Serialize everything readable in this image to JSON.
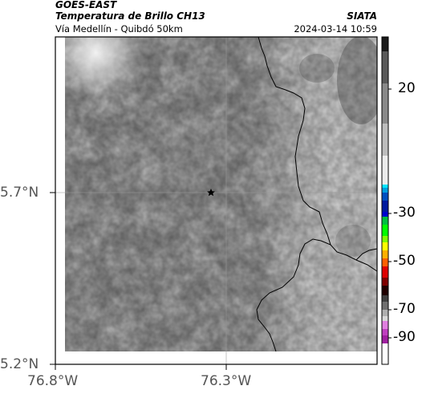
{
  "header": {
    "satellite": "GOES-EAST",
    "product": "Temperatura de Brillo CH13",
    "region": "Vía Medellín - Quibdó 50km",
    "org": "SIATA",
    "timestamp": "2024-03-14 10:59"
  },
  "axes": {
    "lat_labels": [
      "5.7°N",
      "5.2°N"
    ],
    "lon_labels": [
      "76.8°W",
      "76.3°W"
    ]
  },
  "colorbar": {
    "labels": [
      "20",
      "-30",
      "-50",
      "-70",
      "-90"
    ]
  },
  "marker": {
    "icon": "star-icon"
  }
}
